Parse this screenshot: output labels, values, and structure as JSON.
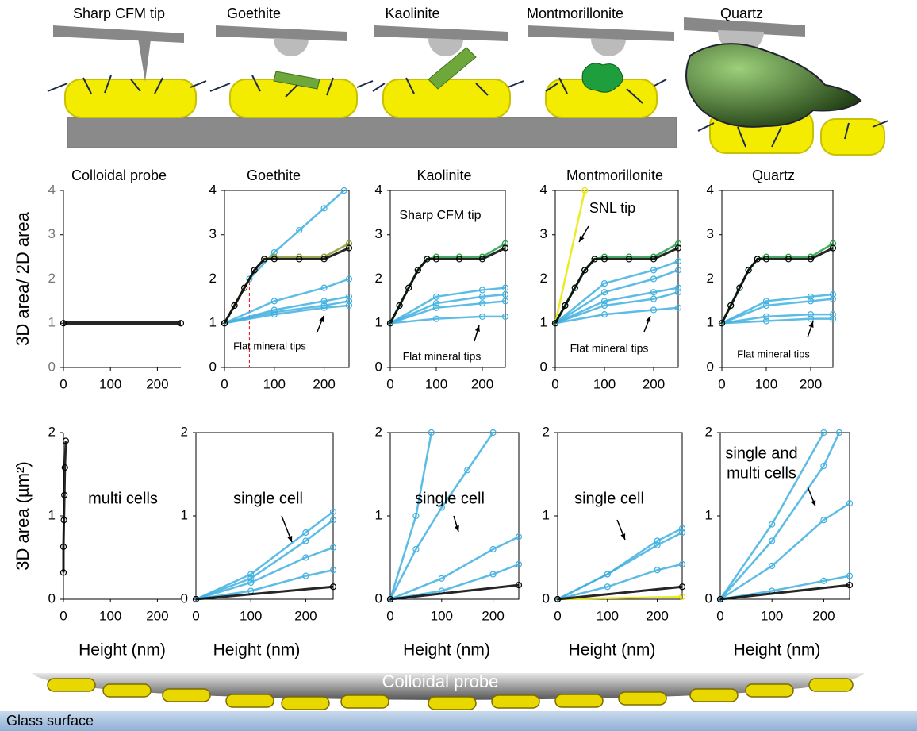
{
  "illustration": {
    "labels": [
      "Sharp CFM tip",
      "Goethite",
      "Kaolinite",
      "Montmorillonite",
      "Quartz"
    ]
  },
  "bottom": {
    "probe": "Colloidal probe",
    "surface": "Glass surface"
  },
  "chart_data": [
    {
      "type": "line",
      "title": "Colloidal probe",
      "ylabel": "3D area/ 2D area",
      "xlim": [
        0,
        250
      ],
      "ylim": [
        0,
        4
      ],
      "xticks": [
        0,
        100,
        200
      ],
      "yticks": [
        0,
        1,
        2,
        3,
        4
      ],
      "series": [
        {
          "color": "#000000",
          "x": [
            0,
            250
          ],
          "values": [
            1,
            1
          ]
        }
      ]
    },
    {
      "type": "line",
      "title": "Goethite",
      "xlim": [
        0,
        250
      ],
      "ylim": [
        0,
        4
      ],
      "xticks": [
        0,
        100,
        200
      ],
      "yticks": [
        0,
        1,
        2,
        3,
        4
      ],
      "guide_point": {
        "x": 50,
        "y": 2
      },
      "annotations": [
        "Flat mineral tips"
      ],
      "series": [
        {
          "color": "#3fb0e0",
          "x": [
            0,
            50,
            100,
            150,
            200,
            240
          ],
          "values": [
            1,
            2,
            2.6,
            3.1,
            3.6,
            4
          ]
        },
        {
          "color": "#3fb0e0",
          "x": [
            0,
            100,
            200,
            250
          ],
          "values": [
            1,
            1.5,
            1.8,
            2
          ]
        },
        {
          "color": "#3fb0e0",
          "x": [
            0,
            100,
            200,
            250
          ],
          "values": [
            1,
            1.3,
            1.5,
            1.6
          ]
        },
        {
          "color": "#3fb0e0",
          "x": [
            0,
            100,
            200,
            250
          ],
          "values": [
            1,
            1.25,
            1.4,
            1.5
          ]
        },
        {
          "color": "#3fb0e0",
          "x": [
            0,
            100,
            200,
            250
          ],
          "values": [
            1,
            1.2,
            1.35,
            1.4
          ]
        },
        {
          "color": "#8a9a30",
          "x": [
            0,
            20,
            40,
            60,
            80,
            100,
            150,
            200,
            250
          ],
          "values": [
            1,
            1.4,
            1.8,
            2.2,
            2.45,
            2.5,
            2.5,
            2.5,
            2.8
          ]
        },
        {
          "color": "#000000",
          "x": [
            0,
            20,
            40,
            60,
            80,
            100,
            150,
            200,
            250
          ],
          "values": [
            1,
            1.4,
            1.8,
            2.2,
            2.45,
            2.45,
            2.45,
            2.45,
            2.7
          ]
        }
      ]
    },
    {
      "type": "line",
      "title": "Kaolinite",
      "xlim": [
        0,
        250
      ],
      "ylim": [
        0,
        4
      ],
      "xticks": [
        0,
        100,
        200
      ],
      "yticks": [
        0,
        1,
        2,
        3,
        4
      ],
      "annotations": [
        "Sharp CFM tip",
        "Flat mineral tips"
      ],
      "series": [
        {
          "color": "#3fb0e0",
          "x": [
            0,
            100,
            200,
            250
          ],
          "values": [
            1,
            1.6,
            1.75,
            1.8
          ]
        },
        {
          "color": "#3fb0e0",
          "x": [
            0,
            100,
            200,
            250
          ],
          "values": [
            1,
            1.45,
            1.6,
            1.65
          ]
        },
        {
          "color": "#3fb0e0",
          "x": [
            0,
            100,
            200,
            250
          ],
          "values": [
            1,
            1.35,
            1.45,
            1.5
          ]
        },
        {
          "color": "#3fb0e0",
          "x": [
            0,
            100,
            200,
            250
          ],
          "values": [
            1,
            1.1,
            1.15,
            1.15
          ]
        },
        {
          "color": "#22a045",
          "x": [
            0,
            20,
            40,
            60,
            80,
            100,
            150,
            200,
            250
          ],
          "values": [
            1,
            1.4,
            1.8,
            2.2,
            2.45,
            2.5,
            2.5,
            2.5,
            2.8
          ]
        },
        {
          "color": "#000000",
          "x": [
            0,
            20,
            40,
            60,
            80,
            100,
            150,
            200,
            250
          ],
          "values": [
            1,
            1.4,
            1.8,
            2.2,
            2.45,
            2.45,
            2.45,
            2.45,
            2.7
          ]
        }
      ]
    },
    {
      "type": "line",
      "title": "Montmorillonite",
      "xlim": [
        0,
        250
      ],
      "ylim": [
        0,
        4
      ],
      "xticks": [
        0,
        100,
        200
      ],
      "yticks": [
        0,
        1,
        2,
        3,
        4
      ],
      "annotations": [
        "SNL tip",
        "Flat mineral tips"
      ],
      "series": [
        {
          "color": "#e8e800",
          "x": [
            0,
            60
          ],
          "values": [
            1,
            4
          ]
        },
        {
          "color": "#3fb0e0",
          "x": [
            0,
            100,
            200,
            250
          ],
          "values": [
            1,
            1.9,
            2.2,
            2.4
          ]
        },
        {
          "color": "#3fb0e0",
          "x": [
            0,
            100,
            200,
            250
          ],
          "values": [
            1,
            1.7,
            2,
            2.2
          ]
        },
        {
          "color": "#3fb0e0",
          "x": [
            0,
            100,
            200,
            250
          ],
          "values": [
            1,
            1.5,
            1.7,
            1.8
          ]
        },
        {
          "color": "#3fb0e0",
          "x": [
            0,
            100,
            200,
            250
          ],
          "values": [
            1,
            1.4,
            1.55,
            1.7
          ]
        },
        {
          "color": "#3fb0e0",
          "x": [
            0,
            100,
            200,
            250
          ],
          "values": [
            1,
            1.2,
            1.3,
            1.35
          ]
        },
        {
          "color": "#22a045",
          "x": [
            0,
            20,
            40,
            60,
            80,
            100,
            150,
            200,
            250
          ],
          "values": [
            1,
            1.4,
            1.8,
            2.2,
            2.45,
            2.5,
            2.5,
            2.5,
            2.8
          ]
        },
        {
          "color": "#000000",
          "x": [
            0,
            20,
            40,
            60,
            80,
            100,
            150,
            200,
            250
          ],
          "values": [
            1,
            1.4,
            1.8,
            2.2,
            2.45,
            2.45,
            2.45,
            2.45,
            2.7
          ]
        }
      ]
    },
    {
      "type": "line",
      "title": "Quartz",
      "xlim": [
        0,
        250
      ],
      "ylim": [
        0,
        4
      ],
      "xticks": [
        0,
        100,
        200
      ],
      "yticks": [
        0,
        1,
        2,
        3,
        4
      ],
      "annotations": [
        "Flat mineral tips"
      ],
      "series": [
        {
          "color": "#3fb0e0",
          "x": [
            0,
            100,
            200,
            250
          ],
          "values": [
            1,
            1.5,
            1.6,
            1.65
          ]
        },
        {
          "color": "#3fb0e0",
          "x": [
            0,
            100,
            200,
            250
          ],
          "values": [
            1,
            1.4,
            1.5,
            1.55
          ]
        },
        {
          "color": "#3fb0e0",
          "x": [
            0,
            100,
            200,
            250
          ],
          "values": [
            1,
            1.15,
            1.2,
            1.2
          ]
        },
        {
          "color": "#3fb0e0",
          "x": [
            0,
            100,
            200,
            250
          ],
          "values": [
            1,
            1.05,
            1.1,
            1.1
          ]
        },
        {
          "color": "#22a045",
          "x": [
            0,
            20,
            40,
            60,
            80,
            100,
            150,
            200,
            250
          ],
          "values": [
            1,
            1.4,
            1.8,
            2.2,
            2.45,
            2.5,
            2.5,
            2.5,
            2.8
          ]
        },
        {
          "color": "#000000",
          "x": [
            0,
            20,
            40,
            60,
            80,
            100,
            150,
            200,
            250
          ],
          "values": [
            1,
            1.4,
            1.8,
            2.2,
            2.45,
            2.45,
            2.45,
            2.45,
            2.7
          ]
        }
      ]
    },
    {
      "type": "line",
      "ylabel": "3D area (µm²)",
      "xlabel": "Height (nm)",
      "xlim": [
        0,
        250
      ],
      "ylim": [
        0,
        2
      ],
      "xticks": [
        0,
        100,
        200
      ],
      "yticks": [
        0,
        1,
        2
      ],
      "annotations": [
        "multi cells"
      ],
      "series": [
        {
          "color": "#000000",
          "x": [
            0,
            0,
            1,
            2,
            3,
            5
          ],
          "values": [
            0.32,
            0.63,
            0.95,
            1.25,
            1.58,
            1.9
          ]
        }
      ]
    },
    {
      "type": "line",
      "xlabel": "Height (nm)",
      "xlim": [
        0,
        250
      ],
      "ylim": [
        0,
        2
      ],
      "xticks": [
        0,
        100,
        200
      ],
      "yticks": [
        0,
        1,
        2
      ],
      "annotations": [
        "single cell"
      ],
      "series": [
        {
          "color": "#3fb0e0",
          "x": [
            0,
            100,
            200,
            250
          ],
          "values": [
            0,
            0.3,
            0.8,
            1.05
          ]
        },
        {
          "color": "#3fb0e0",
          "x": [
            0,
            100,
            200,
            250
          ],
          "values": [
            0,
            0.25,
            0.7,
            0.95
          ]
        },
        {
          "color": "#3fb0e0",
          "x": [
            0,
            100,
            200,
            250
          ],
          "values": [
            0,
            0.2,
            0.5,
            0.62
          ]
        },
        {
          "color": "#3fb0e0",
          "x": [
            0,
            100,
            200,
            250
          ],
          "values": [
            0,
            0.1,
            0.28,
            0.35
          ]
        },
        {
          "color": "#000000",
          "x": [
            0,
            250
          ],
          "values": [
            0,
            0.15
          ]
        }
      ]
    },
    {
      "type": "line",
      "xlabel": "Height (nm)",
      "xlim": [
        0,
        250
      ],
      "ylim": [
        0,
        2
      ],
      "xticks": [
        0,
        100,
        200
      ],
      "yticks": [
        0,
        1,
        2
      ],
      "annotations": [
        "single cell"
      ],
      "series": [
        {
          "color": "#3fb0e0",
          "x": [
            0,
            50,
            80
          ],
          "values": [
            0,
            1,
            2
          ]
        },
        {
          "color": "#3fb0e0",
          "x": [
            0,
            50,
            100,
            150,
            200
          ],
          "values": [
            0,
            0.6,
            1.1,
            1.55,
            2
          ]
        },
        {
          "color": "#3fb0e0",
          "x": [
            0,
            100,
            200,
            250
          ],
          "values": [
            0,
            0.25,
            0.6,
            0.75
          ]
        },
        {
          "color": "#3fb0e0",
          "x": [
            0,
            100,
            200,
            250
          ],
          "values": [
            0,
            0.1,
            0.3,
            0.42
          ]
        },
        {
          "color": "#000000",
          "x": [
            0,
            250
          ],
          "values": [
            0,
            0.17
          ]
        }
      ]
    },
    {
      "type": "line",
      "xlabel": "Height (nm)",
      "xlim": [
        0,
        250
      ],
      "ylim": [
        0,
        2
      ],
      "xticks": [
        0,
        100,
        200
      ],
      "yticks": [
        0,
        1,
        2
      ],
      "annotations": [
        "single cell"
      ],
      "series": [
        {
          "color": "#e8e800",
          "x": [
            0,
            250
          ],
          "values": [
            0,
            0.03
          ]
        },
        {
          "color": "#3fb0e0",
          "x": [
            0,
            100,
            200,
            250
          ],
          "values": [
            0,
            0.3,
            0.7,
            0.85
          ]
        },
        {
          "color": "#3fb0e0",
          "x": [
            0,
            100,
            200,
            250
          ],
          "values": [
            0,
            0.3,
            0.65,
            0.8
          ]
        },
        {
          "color": "#3fb0e0",
          "x": [
            0,
            100,
            200,
            250
          ],
          "values": [
            0,
            0.15,
            0.35,
            0.42
          ]
        },
        {
          "color": "#000000",
          "x": [
            0,
            250
          ],
          "values": [
            0,
            0.15
          ]
        }
      ]
    },
    {
      "type": "line",
      "xlabel": "Height (nm)",
      "xlim": [
        0,
        250
      ],
      "ylim": [
        0,
        2
      ],
      "xticks": [
        0,
        100,
        200
      ],
      "yticks": [
        0,
        1,
        2
      ],
      "annotations": [
        "single and",
        "multi cells"
      ],
      "series": [
        {
          "color": "#3fb0e0",
          "x": [
            0,
            100,
            200
          ],
          "values": [
            0,
            0.9,
            2
          ]
        },
        {
          "color": "#3fb0e0",
          "x": [
            0,
            100,
            200,
            230
          ],
          "values": [
            0,
            0.7,
            1.6,
            2
          ]
        },
        {
          "color": "#3fb0e0",
          "x": [
            0,
            100,
            200,
            250
          ],
          "values": [
            0,
            0.4,
            0.95,
            1.15
          ]
        },
        {
          "color": "#3fb0e0",
          "x": [
            0,
            100,
            200,
            250
          ],
          "values": [
            0,
            0.1,
            0.22,
            0.28
          ]
        },
        {
          "color": "#000000",
          "x": [
            0,
            250
          ],
          "values": [
            0,
            0.17
          ]
        }
      ]
    }
  ]
}
